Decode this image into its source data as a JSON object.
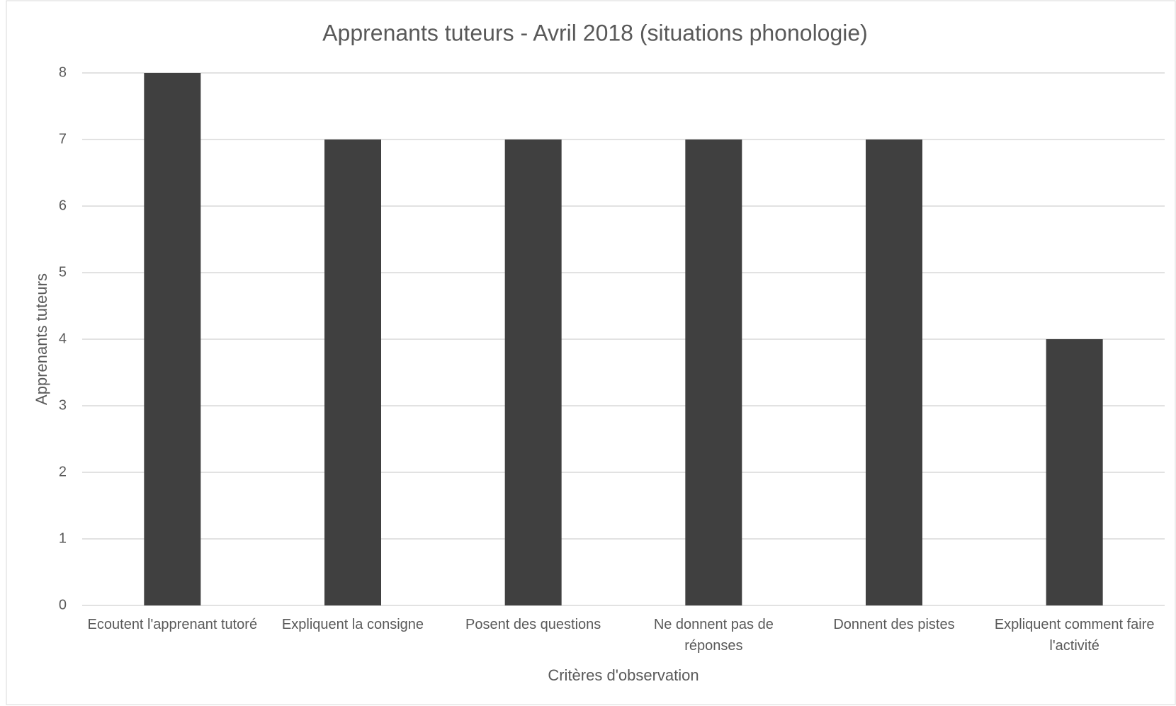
{
  "chart_data": {
    "type": "bar",
    "title": "Apprenants tuteurs - Avril 2018 (situations phonologie)",
    "x_label": "Critères d'observation",
    "y_label": "Apprenants tuteurs",
    "categories": [
      "Ecoutent l'apprenant tutoré",
      "Expliquent la consigne",
      "Posent des questions",
      "Ne donnent pas de réponses",
      "Donnent des pistes",
      "Expliquent comment faire l'activité"
    ],
    "values": [
      8,
      7,
      7,
      7,
      7,
      4
    ],
    "color": "#404040",
    "ylim": [
      0,
      8
    ],
    "yticks": [
      0,
      1,
      2,
      3,
      4,
      5,
      6,
      7,
      8
    ],
    "grid": true
  }
}
